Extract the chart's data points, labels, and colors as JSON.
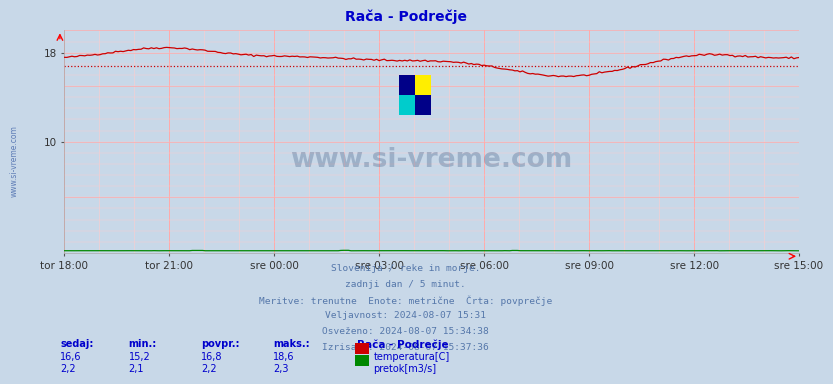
{
  "title": "Rača - Podrečje",
  "title_color": "#0000cc",
  "bg_color": "#c8d8e8",
  "plot_bg_color": "#c8d8e8",
  "grid_color_major": "#ff9999",
  "grid_color_minor": "#ffcccc",
  "x_tick_labels": [
    "tor 18:00",
    "tor 21:00",
    "sre 00:00",
    "sre 03:00",
    "sre 06:00",
    "sre 09:00",
    "sre 12:00",
    "sre 15:00"
  ],
  "x_tick_positions": [
    0,
    36,
    72,
    108,
    144,
    180,
    216,
    252
  ],
  "ylim": [
    0,
    20
  ],
  "n_points": 288,
  "temp_color": "#cc0000",
  "flow_color": "#008800",
  "watermark": "www.si-vreme.com",
  "watermark_color": "#1a3a6a",
  "info_lines": [
    "Slovenija / reke in morje.",
    "zadnji dan / 5 minut.",
    "Meritve: trenutne  Enote: metrične  Črta: povprečje",
    "Veljavnost: 2024-08-07 15:31",
    "Osveženo: 2024-08-07 15:34:38",
    "Izrisano: 2024-08-07 15:37:36"
  ],
  "info_color": "#5577aa",
  "legend_title": "Rača - Podrečje",
  "legend_items": [
    "temperatura[C]",
    "pretok[m3/s]"
  ],
  "legend_colors": [
    "#cc0000",
    "#008800"
  ],
  "table_headers": [
    "sedaj:",
    "min.:",
    "povpr.:",
    "maks.:"
  ],
  "table_data": [
    [
      "16,6",
      "15,2",
      "16,8",
      "18,6"
    ],
    [
      "2,2",
      "2,1",
      "2,2",
      "2,3"
    ]
  ],
  "table_color": "#0000cc",
  "avg_temp": 16.8
}
